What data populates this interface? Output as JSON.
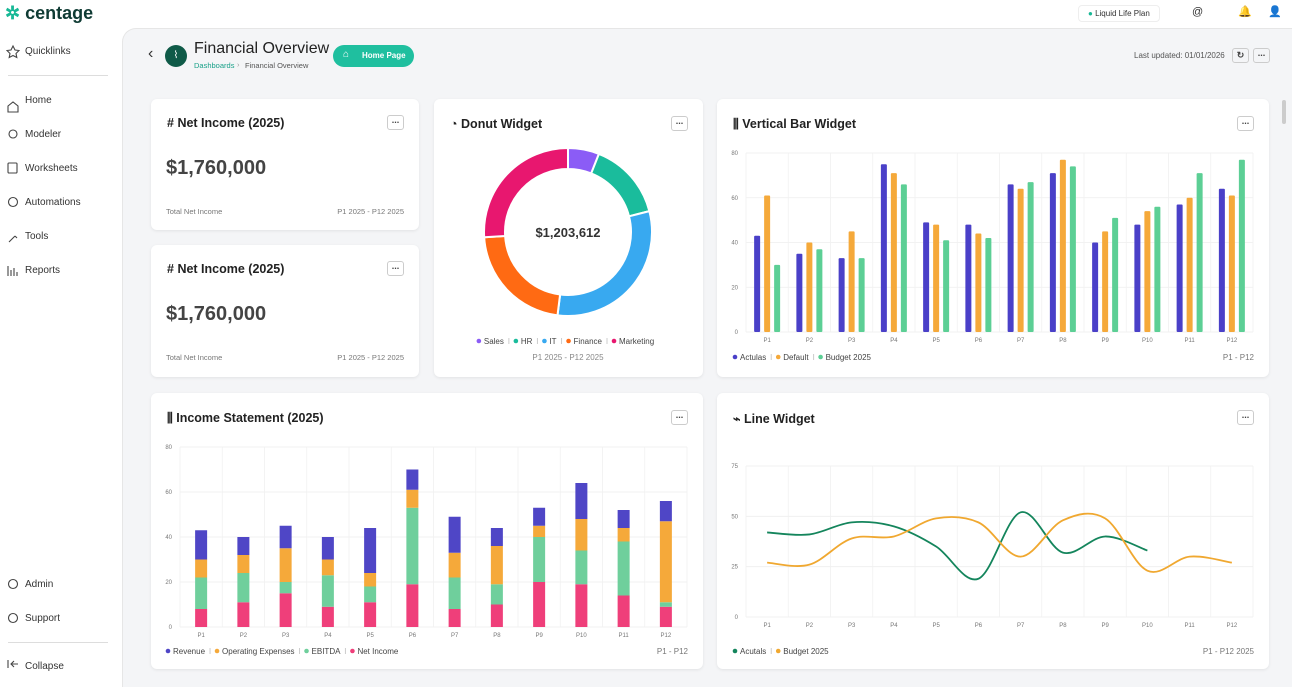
{
  "app": {
    "logo": "centage",
    "plan": "Liquid Life Plan"
  },
  "sidebar": {
    "items": [
      "Quicklinks",
      "Home",
      "Modeler",
      "Worksheets",
      "Automations",
      "Tools",
      "Reports"
    ],
    "bottom": [
      "Admin",
      "Support"
    ],
    "collapse": "Collapse"
  },
  "header": {
    "title": "Financial Overview",
    "breadcrumb": [
      "Dashboards",
      "Financial Overview"
    ],
    "button": "Home Page",
    "last_updated": "Last updated: 01/01/2026"
  },
  "kpis": [
    {
      "title": "Net Income (2025)",
      "value": "$1,760,000",
      "label": "Total Net Income",
      "period": "P1 2025 - P12 2025"
    },
    {
      "title": "Net Income (2025)",
      "value": "$1,760,000",
      "label": "Total Net Income",
      "period": "P1 2025 - P12 2025"
    }
  ],
  "chart_data": [
    {
      "type": "donut",
      "title": "Donut Widget",
      "total_label": "$1,203,612",
      "period": "P1 2025 - P12 2025",
      "categories": [
        "Sales",
        "HR",
        "IT",
        "Finance",
        "Marketing"
      ],
      "values": [
        6,
        15,
        31,
        22,
        26
      ],
      "colors": [
        "#8b5cf6",
        "#1abc9c",
        "#38a9f0",
        "#ff6a13",
        "#e8176f"
      ]
    },
    {
      "type": "bar",
      "title": "Vertical Bar Widget",
      "period": "P1 - P12",
      "categories": [
        "P1",
        "P2",
        "P3",
        "P4",
        "P5",
        "P6",
        "P7",
        "P8",
        "P9",
        "P10",
        "P11",
        "P12"
      ],
      "series": [
        {
          "name": "Actulas",
          "color": "#4a40c8",
          "values": [
            43,
            35,
            33,
            75,
            49,
            48,
            66,
            71,
            40,
            48,
            57,
            64
          ]
        },
        {
          "name": "Default",
          "color": "#f5a93a",
          "values": [
            61,
            40,
            45,
            71,
            48,
            44,
            64,
            77,
            45,
            54,
            60,
            61
          ]
        },
        {
          "name": "Budget 2025",
          "color": "#5ccf95",
          "values": [
            30,
            37,
            33,
            66,
            41,
            42,
            67,
            74,
            51,
            56,
            71,
            77
          ]
        }
      ],
      "ylim": [
        0,
        80
      ],
      "yticks": [
        0,
        20,
        40,
        60,
        80
      ],
      "grid": true
    },
    {
      "type": "stacked_bar",
      "title": "Income Statement (2025)",
      "period": "P1 - P12",
      "categories": [
        "P1",
        "P2",
        "P3",
        "P4",
        "P5",
        "P6",
        "P7",
        "P8",
        "P9",
        "P10",
        "P11",
        "P12"
      ],
      "series": [
        {
          "name": "Revenue",
          "color": "#4f46c6",
          "values": [
            13,
            8,
            10,
            10,
            20,
            9,
            16,
            8,
            8,
            16,
            8,
            9
          ]
        },
        {
          "name": "Operating Expenses",
          "color": "#f5a93a",
          "values": [
            8,
            8,
            15,
            7,
            6,
            8,
            11,
            17,
            5,
            14,
            6,
            36
          ]
        },
        {
          "name": "EBITDA",
          "color": "#6fcf9c",
          "values": [
            14,
            13,
            5,
            14,
            7,
            34,
            14,
            9,
            20,
            15,
            24,
            2
          ]
        },
        {
          "name": "Net Income",
          "color": "#ef3f7a",
          "values": [
            8,
            11,
            15,
            9,
            11,
            19,
            8,
            10,
            20,
            19,
            14,
            9
          ]
        }
      ],
      "ylim": [
        0,
        80
      ],
      "yticks": [
        0,
        20,
        40,
        60,
        80
      ],
      "grid": true
    },
    {
      "type": "line",
      "title": "Line Widget",
      "period": "P1 - P12 2025",
      "categories": [
        "P1",
        "P2",
        "P3",
        "P4",
        "P5",
        "P6",
        "P7",
        "P8",
        "P9",
        "P10",
        "P11",
        "P12"
      ],
      "series": [
        {
          "name": "Acutals",
          "color": "#14855c",
          "values": [
            42,
            41,
            47,
            45,
            35,
            19,
            52,
            32,
            40,
            33,
            null,
            null
          ]
        },
        {
          "name": "Budget 2025",
          "color": "#f0a830",
          "values": [
            27,
            26,
            39,
            40,
            49,
            47,
            30,
            48,
            49,
            23,
            30,
            27
          ]
        }
      ],
      "ylim": [
        0,
        75
      ],
      "yticks": [
        0,
        25,
        50,
        75
      ],
      "grid": true
    }
  ]
}
